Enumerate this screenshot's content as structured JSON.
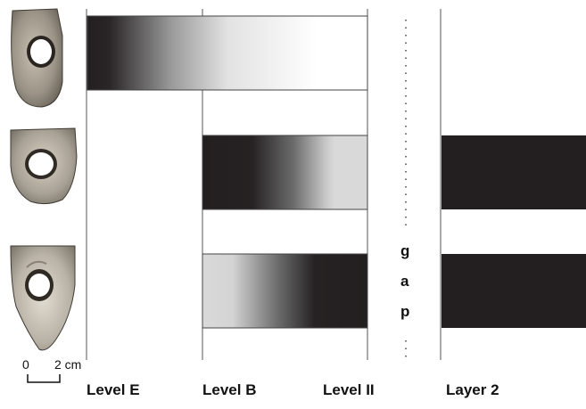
{
  "levels": [
    "Level E",
    "Level B",
    "Level II",
    "Layer 2"
  ],
  "gap_text": [
    "g",
    "a",
    "p"
  ],
  "scale": {
    "start": "0",
    "end": "2 cm"
  },
  "rows": [
    {
      "artifact": "pendant-1",
      "bar_gradient": "dark-to-light"
    },
    {
      "artifact": "pendant-2",
      "bar_gradient": "dark-to-light",
      "layer2": "solid-dark"
    },
    {
      "artifact": "pendant-3",
      "bar_gradient": "light-to-dark",
      "layer2": "solid-dark"
    }
  ],
  "colors": {
    "dark": "#231f20",
    "light": "#d9d9d9",
    "line": "#555555"
  }
}
